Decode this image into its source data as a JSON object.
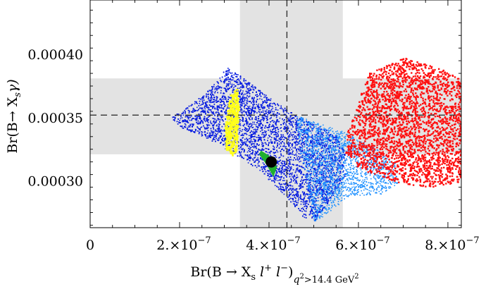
{
  "chart_data": {
    "type": "scatter",
    "title": "",
    "xlabel": "Br(B → X_s l⁺ l⁻)_{q² > 14.4 GeV²}",
    "xlabel_parts": {
      "main": "Br(B → X",
      "s_sub": "s",
      "l1": " l",
      "plus": "+",
      "l2": " l",
      "minus": "−",
      "close": ")",
      "q": "q",
      "q_sup": "2",
      "cut": ">14.4 GeV",
      "cut_sup": "2"
    },
    "ylabel": "Br(B→ X_s γ)",
    "ylabel_parts": {
      "main": "Br(B→ X",
      "s_sub": "s",
      "gamma": "γ)"
    },
    "xlim": [
      0,
      8.3e-07
    ],
    "ylim": [
      0.000263,
      0.000443
    ],
    "x_ticks": [
      {
        "value": 0,
        "label": "0"
      },
      {
        "value": 2e-07,
        "mant": "2.×10",
        "exp": "−7"
      },
      {
        "value": 4e-07,
        "mant": "4.×10",
        "exp": "−7"
      },
      {
        "value": 6e-07,
        "mant": "6.×10",
        "exp": "−7"
      },
      {
        "value": 8e-07,
        "mant": "8.×10",
        "exp": "−7"
      }
    ],
    "y_ticks": [
      {
        "value": 0.0003,
        "label": "0.00030"
      },
      {
        "value": 0.00035,
        "label": "0.00035"
      },
      {
        "value": 0.0004,
        "label": "0.00040"
      }
    ],
    "measurement": {
      "x_central": 4.4e-07,
      "x_band": [
        3.35e-07,
        5.65e-07
      ],
      "y_central": 0.000352,
      "y_band": [
        0.000321,
        0.000381
      ]
    },
    "colors": {
      "band": "#e3e3e3",
      "blue": "#0a1fe0",
      "light_blue": "#1e90ff",
      "yellow": "#ffff1a",
      "green": "#20b030",
      "red": "#ff1010",
      "marker": "#000000"
    },
    "series": [
      {
        "color_key": "blue",
        "region_polygon": [
          [
            1.8e-07,
            0.00035
          ],
          [
            2.3e-07,
            0.000362
          ],
          [
            2.8e-07,
            0.000378
          ],
          [
            3.05e-07,
            0.00039
          ],
          [
            3.4e-07,
            0.000382
          ],
          [
            4e-07,
            0.000366
          ],
          [
            4.6e-07,
            0.000352
          ],
          [
            5.2e-07,
            0.000342
          ],
          [
            5.5e-07,
            0.000336
          ],
          [
            5.7e-07,
            0.000322
          ],
          [
            5.7e-07,
            0.000305
          ],
          [
            5.5e-07,
            0.000292
          ],
          [
            5.2e-07,
            0.000278
          ],
          [
            5e-07,
            0.000268
          ],
          [
            4.75e-07,
            0.000272
          ],
          [
            4.3e-07,
            0.00029
          ],
          [
            3.8e-07,
            0.000308
          ],
          [
            3.2e-07,
            0.000322
          ],
          [
            2.6e-07,
            0.000334
          ],
          [
            2e-07,
            0.000343
          ]
        ],
        "count": 9000
      },
      {
        "color_key": "light_blue",
        "region_polygon": [
          [
            4.6e-07,
            0.000352
          ],
          [
            5.6e-07,
            0.00034
          ],
          [
            6.3e-07,
            0.000328
          ],
          [
            6.8e-07,
            0.000315
          ],
          [
            6.9e-07,
            0.000298
          ],
          [
            6.5e-07,
            0.00029
          ],
          [
            5.8e-07,
            0.000288
          ],
          [
            5.2e-07,
            0.000272
          ],
          [
            5e-07,
            0.000268
          ],
          [
            4.9e-07,
            0.000285
          ],
          [
            4.7e-07,
            0.00032
          ]
        ],
        "count": 1800
      },
      {
        "color_key": "red",
        "region_polygon": [
          [
            5.75e-07,
            0.00034
          ],
          [
            6.2e-07,
            0.000385
          ],
          [
            7e-07,
            0.000398
          ],
          [
            7.8e-07,
            0.00039
          ],
          [
            8.3e-07,
            0.00038
          ],
          [
            8.3e-07,
            0.0003
          ],
          [
            7.5e-07,
            0.000295
          ],
          [
            6.8e-07,
            0.0003
          ],
          [
            6e-07,
            0.00031
          ],
          [
            5.7e-07,
            0.000322
          ]
        ],
        "count": 2600
      },
      {
        "color_key": "yellow",
        "region_polygon": [
          [
            3.02e-07,
            0.000325
          ],
          [
            3e-07,
            0.000345
          ],
          [
            3.12e-07,
            0.000368
          ],
          [
            3.28e-07,
            0.000374
          ],
          [
            3.32e-07,
            0.000355
          ],
          [
            3.26e-07,
            0.000325
          ],
          [
            3.18e-07,
            0.00032
          ]
        ],
        "count": 420
      },
      {
        "color_key": "green",
        "region_polygon": [
          [
            3.82e-07,
            0.000324
          ],
          [
            4e-07,
            0.00032
          ],
          [
            4.18e-07,
            0.000311
          ],
          [
            4.1e-07,
            0.000303
          ],
          [
            3.96e-07,
            0.000312
          ],
          [
            3.78e-07,
            0.000321
          ]
        ],
        "count": 0
      }
    ],
    "marker_point": {
      "x": 4.05e-07,
      "y": 0.000315,
      "color_key": "marker"
    }
  }
}
